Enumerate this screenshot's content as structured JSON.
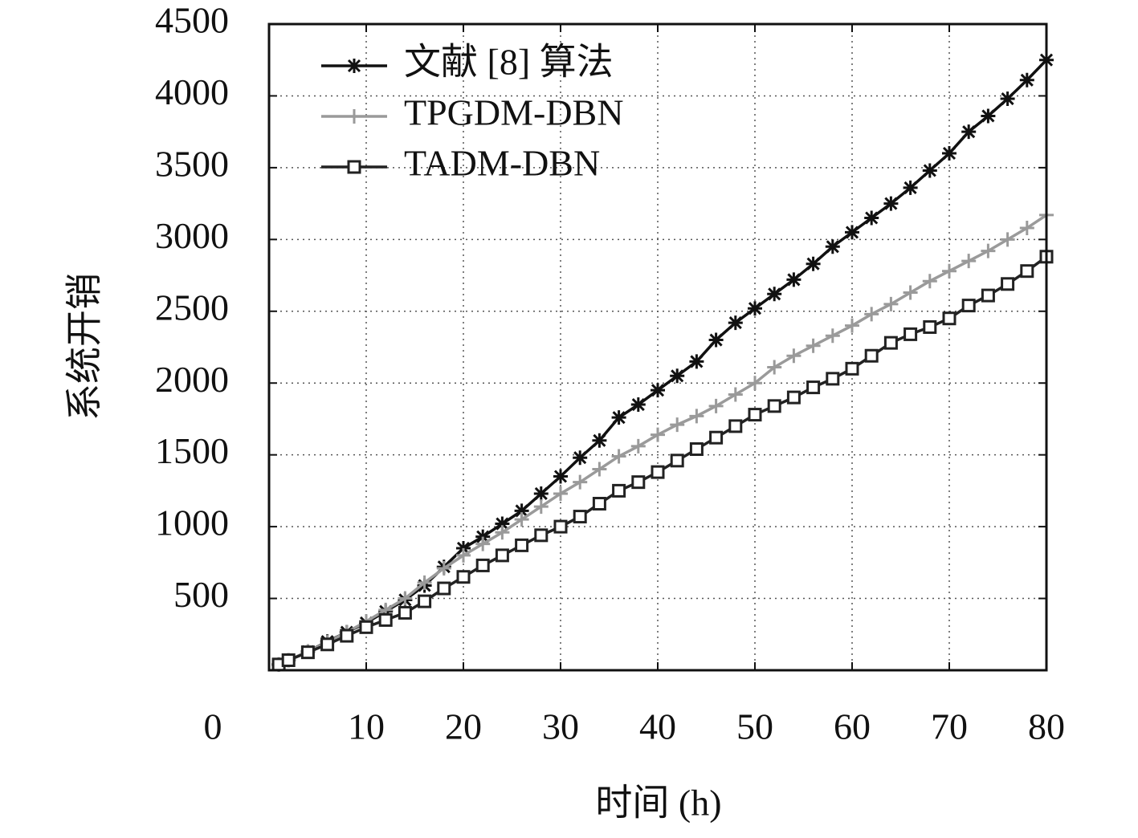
{
  "chart_data": {
    "type": "line",
    "xlabel": "时间 (h)",
    "ylabel": "系统开销",
    "x": [
      1,
      2,
      4,
      6,
      8,
      10,
      12,
      14,
      16,
      18,
      20,
      22,
      24,
      26,
      28,
      30,
      32,
      34,
      36,
      38,
      40,
      42,
      44,
      46,
      48,
      50,
      52,
      54,
      56,
      58,
      60,
      62,
      64,
      66,
      68,
      70,
      72,
      74,
      76,
      78,
      80
    ],
    "series": [
      {
        "name": "文献 [8] 算法",
        "color": "#111111",
        "marker": "asterisk",
        "values": [
          40,
          70,
          130,
          200,
          265,
          330,
          410,
          490,
          590,
          720,
          850,
          930,
          1020,
          1110,
          1230,
          1350,
          1480,
          1600,
          1760,
          1850,
          1950,
          2050,
          2150,
          2300,
          2420,
          2520,
          2620,
          2720,
          2830,
          2950,
          3050,
          3150,
          3250,
          3360,
          3480,
          3600,
          3750,
          3860,
          3980,
          4110,
          4250
        ]
      },
      {
        "name": "TPGDM-DBN",
        "color": "#9a9a9a",
        "marker": "plus",
        "values": [
          40,
          70,
          130,
          195,
          265,
          340,
          420,
          500,
          610,
          710,
          800,
          880,
          960,
          1050,
          1140,
          1230,
          1310,
          1400,
          1490,
          1560,
          1640,
          1710,
          1770,
          1840,
          1920,
          2000,
          2110,
          2190,
          2260,
          2330,
          2400,
          2480,
          2550,
          2630,
          2710,
          2780,
          2850,
          2920,
          3000,
          3080,
          3170
        ]
      },
      {
        "name": "TADM-DBN",
        "color": "#222222",
        "marker": "square",
        "values": [
          40,
          70,
          125,
          180,
          240,
          300,
          350,
          400,
          480,
          570,
          650,
          730,
          800,
          870,
          940,
          1000,
          1070,
          1160,
          1250,
          1310,
          1380,
          1460,
          1540,
          1620,
          1700,
          1780,
          1840,
          1900,
          1970,
          2030,
          2100,
          2190,
          2280,
          2340,
          2390,
          2450,
          2540,
          2610,
          2690,
          2780,
          2880
        ]
      }
    ],
    "xlim": [
      0,
      80
    ],
    "xticks": [
      0,
      10,
      20,
      30,
      40,
      50,
      60,
      70,
      80
    ],
    "ylim": [
      0,
      4500
    ],
    "yticks": [
      500,
      1000,
      1500,
      2000,
      2500,
      3000,
      3500,
      4000,
      4500
    ],
    "grid": true,
    "legend": "upper left"
  }
}
